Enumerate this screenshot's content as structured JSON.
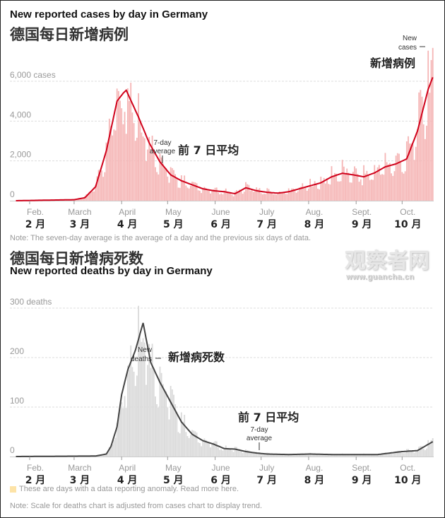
{
  "cases_title_en": "New reported cases by day in Germany",
  "cases_title_zh": "德国每日新增病例",
  "cases_note": "Note: The seven-day average is the average of a day and the previous six days of data.",
  "deaths_title_zh": "德国每日新增病死数",
  "deaths_title_en": "New reported deaths by day in Germany",
  "watermark": {
    "zh": "观察者网",
    "url": "www.guancha.cn"
  },
  "anomaly_legend": {
    "text": "These are days with a data reporting anomaly. Read more ",
    "link": "here",
    "end": ".",
    "color": "#fde3a7"
  },
  "deaths_note": "Note: Scale for deaths chart is adjusted from cases chart to display trend.",
  "chart_data": [
    {
      "type": "bar",
      "title": "New reported cases by day in Germany",
      "months": [
        {
          "en": "Feb.",
          "zh": "2 月",
          "day": 0
        },
        {
          "en": "March",
          "zh": "3 月",
          "day": 29
        },
        {
          "en": "April",
          "zh": "4 月",
          "day": 60
        },
        {
          "en": "May",
          "zh": "5 月",
          "day": 90
        },
        {
          "en": "June",
          "zh": "6 月",
          "day": 121
        },
        {
          "en": "July",
          "zh": "7 月",
          "day": 151
        },
        {
          "en": "Aug.",
          "zh": "8 月",
          "day": 182
        },
        {
          "en": "Sept.",
          "zh": "9 月",
          "day": 213
        },
        {
          "en": "Oct.",
          "zh": "10 月",
          "day": 243
        }
      ],
      "yticks": [
        "0",
        "2,000",
        "4,000",
        "6,000 cases"
      ],
      "ytick_values": [
        0,
        2000,
        4000,
        6000
      ],
      "ylim": [
        0,
        6000
      ],
      "grid": true,
      "colors": {
        "bars": "#f5b5b5",
        "line": "#d0021b"
      },
      "annotations": {
        "bars_en": [
          "New",
          "cases"
        ],
        "bars_zh": "新增病例",
        "avg_en": [
          "7-day",
          "average"
        ],
        "avg_zh": "前 7 日平均"
      },
      "seven_day_average": {
        "dates": [
          "Jan 23",
          "Mar 1",
          "Mar 8",
          "Mar 15",
          "Mar 22",
          "Mar 29",
          "Apr 2",
          "Apr 4",
          "Apr 12",
          "Apr 19",
          "Apr 26",
          "May 3",
          "May 10",
          "May 17",
          "May 24",
          "May 31",
          "Jun 7",
          "Jun 14",
          "Jun 21",
          "Jun 28",
          "Jul 5",
          "Jul 12",
          "Jul 19",
          "Jul 26",
          "Aug 2",
          "Aug 9",
          "Aug 16",
          "Aug 23",
          "Aug 30",
          "Sep 6",
          "Sep 13",
          "Sep 20",
          "Sep 27",
          "Oct 4",
          "Oct 11",
          "Oct 18",
          "Oct 21"
        ],
        "day": [
          -9,
          29,
          36,
          43,
          50,
          57,
          61,
          63,
          71,
          78,
          85,
          92,
          99,
          106,
          113,
          120,
          127,
          134,
          141,
          148,
          155,
          162,
          169,
          176,
          183,
          190,
          197,
          204,
          211,
          218,
          225,
          232,
          239,
          246,
          253,
          260,
          263
        ],
        "values": [
          0,
          50,
          150,
          700,
          2500,
          5000,
          5400,
          5550,
          4200,
          2900,
          1950,
          1300,
          1000,
          800,
          600,
          500,
          450,
          350,
          650,
          500,
          420,
          380,
          450,
          600,
          750,
          900,
          1200,
          1380,
          1300,
          1200,
          1400,
          1700,
          1850,
          2100,
          3500,
          5600,
          6200
        ]
      }
    },
    {
      "type": "bar",
      "title": "New reported deaths by day in Germany",
      "yticks": [
        "0",
        "100",
        "200",
        "300 deaths"
      ],
      "ytick_values": [
        0,
        100,
        200,
        300
      ],
      "ylim": [
        0,
        300
      ],
      "grid": true,
      "colors": {
        "bars": "#d9d9d9",
        "line": "#444444"
      },
      "annotations": {
        "bars_en": [
          "New",
          "deaths"
        ],
        "bars_zh": "新增病死数",
        "avg_en": [
          "7-day",
          "average"
        ],
        "avg_zh": "前 7 日平均"
      },
      "seven_day_average": {
        "dates": [
          "Jan 23",
          "Mar 15",
          "Mar 22",
          "Mar 25",
          "Mar 29",
          "Apr 1",
          "Apr 5",
          "Apr 10",
          "Apr 15",
          "Apr 20",
          "Apr 26",
          "May 3",
          "May 10",
          "May 17",
          "May 24",
          "May 31",
          "Jun 7",
          "Jun 14",
          "Jun 21",
          "Jun 28",
          "Jul 5",
          "Jul 19",
          "Aug 2",
          "Aug 16",
          "Sep 1",
          "Sep 15",
          "Oct 1",
          "Oct 11",
          "Oct 21"
        ],
        "day": [
          -9,
          43,
          50,
          53,
          57,
          60,
          64,
          69,
          74,
          79,
          85,
          92,
          99,
          106,
          113,
          120,
          127,
          134,
          141,
          148,
          155,
          169,
          183,
          197,
          213,
          227,
          243,
          253,
          263
        ],
        "values": [
          0,
          1,
          5,
          20,
          60,
          125,
          175,
          215,
          270,
          190,
          150,
          110,
          70,
          45,
          32,
          25,
          16,
          15,
          10,
          7,
          5,
          4,
          5,
          4,
          4,
          4,
          10,
          12,
          30
        ]
      }
    }
  ]
}
